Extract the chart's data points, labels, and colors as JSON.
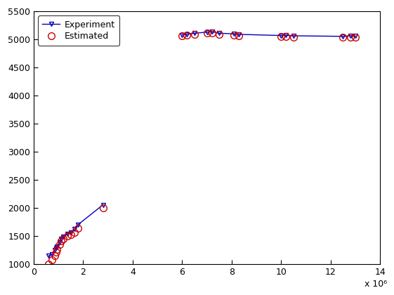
{
  "exp_x_low": [
    600000.0,
    750000.0,
    850000.0,
    900000.0,
    950000.0,
    1050000.0,
    1100000.0,
    1200000.0,
    1350000.0,
    1500000.0,
    1650000.0,
    1800000.0,
    2800000.0
  ],
  "exp_y_low": [
    1150,
    1180,
    1250,
    1290,
    1320,
    1390,
    1450,
    1490,
    1540,
    1570,
    1630,
    1710,
    2060
  ],
  "exp_x_high": [
    6000000.0,
    6200000.0,
    6500000.0,
    7000000.0,
    7200000.0,
    7500000.0,
    8100000.0,
    8300000.0,
    10000000.0,
    10200000.0,
    10500000.0,
    12500000.0,
    12800000.0,
    13000000.0
  ],
  "exp_y_high": [
    5080,
    5095,
    5110,
    5130,
    5140,
    5110,
    5100,
    5090,
    5070,
    5075,
    5065,
    5055,
    5065,
    5060
  ],
  "est_x_low": [
    600000.0,
    750000.0,
    850000.0,
    900000.0,
    950000.0,
    1050000.0,
    1100000.0,
    1200000.0,
    1350000.0,
    1500000.0,
    1650000.0,
    1800000.0,
    2800000.0
  ],
  "est_y_low": [
    1000,
    1080,
    1160,
    1220,
    1270,
    1360,
    1420,
    1460,
    1500,
    1530,
    1570,
    1640,
    2010
  ],
  "est_x_high": [
    6000000.0,
    6200000.0,
    6500000.0,
    7000000.0,
    7200000.0,
    7500000.0,
    8100000.0,
    8300000.0,
    10000000.0,
    10200000.0,
    10500000.0,
    12500000.0,
    12800000.0,
    13000000.0
  ],
  "est_y_high": [
    5060,
    5075,
    5090,
    5110,
    5120,
    5090,
    5080,
    5070,
    5050,
    5055,
    5045,
    5035,
    5045,
    5040
  ],
  "xlim": [
    0,
    14000000.0
  ],
  "ylim": [
    1000,
    5500
  ],
  "xticks": [
    0,
    2000000.0,
    4000000.0,
    6000000.0,
    8000000.0,
    10000000.0,
    12000000.0,
    14000000.0
  ],
  "yticks": [
    1000,
    1500,
    2000,
    2500,
    3000,
    3500,
    4000,
    4500,
    5000,
    5500
  ],
  "exp_color": "#0000bb",
  "est_color": "#cc0000",
  "bg_color": "#ffffff",
  "legend_exp": "Experiment",
  "legend_est": "Estimated",
  "xlabel_multiplier": "x 10⁶",
  "figsize": [
    5.61,
    4.2
  ],
  "dpi": 100
}
